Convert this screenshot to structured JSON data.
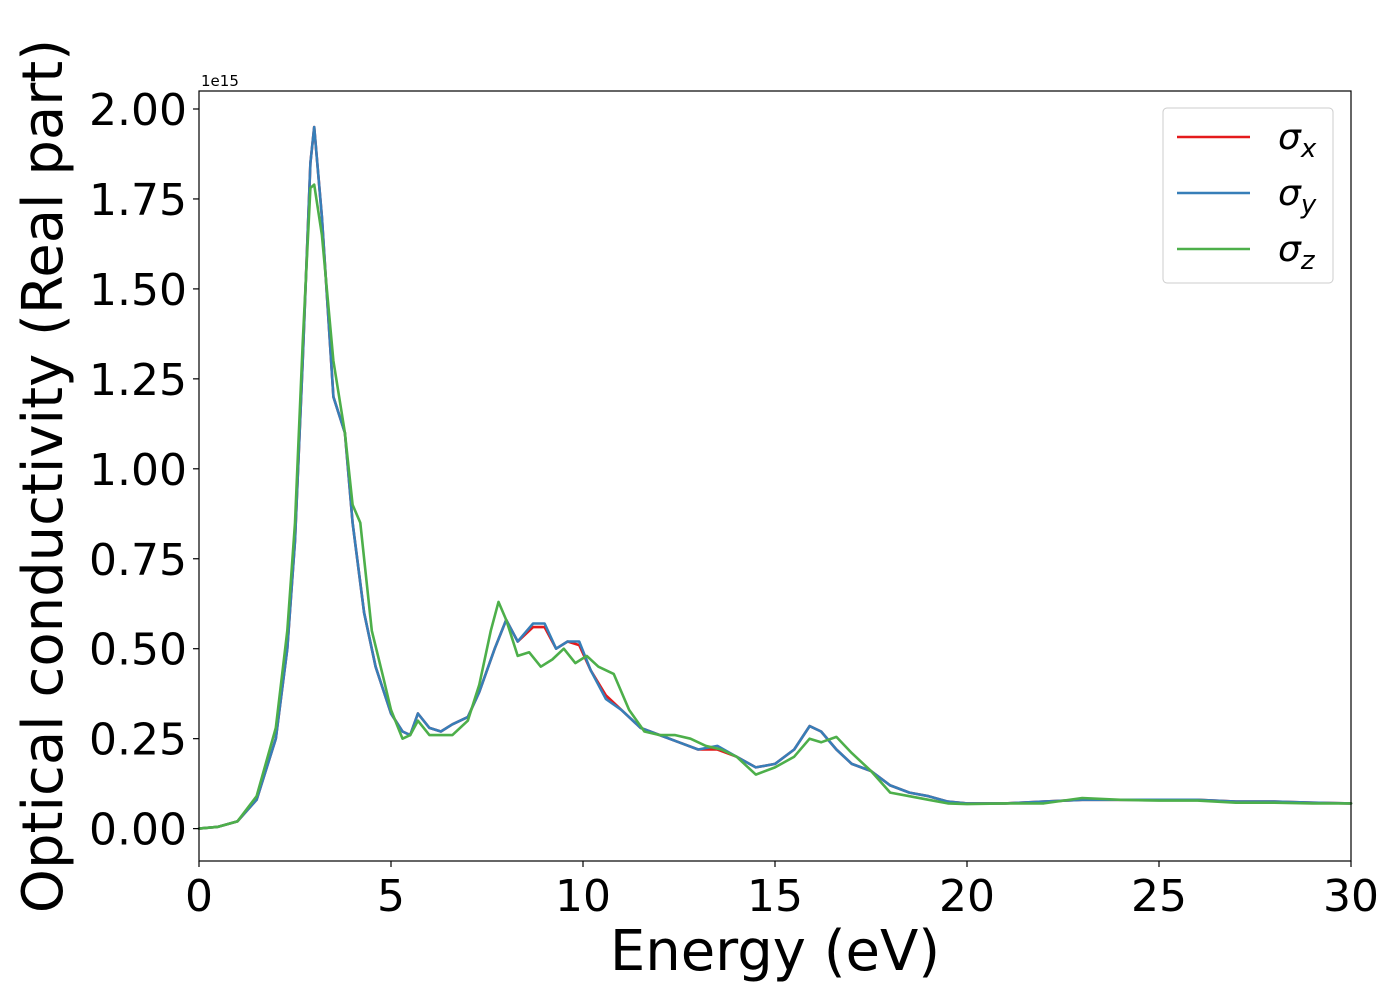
{
  "chart_data": {
    "type": "line",
    "xlabel": "Energy (eV)",
    "ylabel": "Optical conductivity (Real part)",
    "offset_label": "1e15",
    "xlim": [
      0,
      30
    ],
    "ylim": [
      -0.09,
      2.05
    ],
    "xticks": [
      0,
      5,
      10,
      15,
      20,
      25,
      30
    ],
    "xtick_labels": [
      "0",
      "5",
      "10",
      "15",
      "20",
      "25",
      "30"
    ],
    "yticks": [
      0.0,
      0.25,
      0.5,
      0.75,
      1.0,
      1.25,
      1.5,
      1.75,
      2.0
    ],
    "ytick_labels": [
      "0.00",
      "0.25",
      "0.50",
      "0.75",
      "1.00",
      "1.25",
      "1.50",
      "1.75",
      "2.00"
    ],
    "grid": false,
    "legend_position": "top-right",
    "series": [
      {
        "name": "σx",
        "base": "σ",
        "sub": "x",
        "color": "#e41a1c",
        "points": [
          [
            0,
            0
          ],
          [
            0.5,
            0.005
          ],
          [
            1,
            0.02
          ],
          [
            1.5,
            0.08
          ],
          [
            2,
            0.25
          ],
          [
            2.3,
            0.5
          ],
          [
            2.5,
            0.8
          ],
          [
            2.7,
            1.3
          ],
          [
            2.9,
            1.85
          ],
          [
            3.0,
            1.95
          ],
          [
            3.2,
            1.7
          ],
          [
            3.5,
            1.2
          ],
          [
            3.8,
            1.1
          ],
          [
            4.0,
            0.85
          ],
          [
            4.3,
            0.6
          ],
          [
            4.6,
            0.45
          ],
          [
            5.0,
            0.32
          ],
          [
            5.3,
            0.27
          ],
          [
            5.5,
            0.26
          ],
          [
            5.7,
            0.32
          ],
          [
            6.0,
            0.28
          ],
          [
            6.3,
            0.27
          ],
          [
            6.6,
            0.29
          ],
          [
            7.0,
            0.31
          ],
          [
            7.3,
            0.38
          ],
          [
            7.7,
            0.5
          ],
          [
            8.0,
            0.58
          ],
          [
            8.3,
            0.52
          ],
          [
            8.7,
            0.56
          ],
          [
            9.0,
            0.56
          ],
          [
            9.3,
            0.5
          ],
          [
            9.6,
            0.52
          ],
          [
            9.9,
            0.51
          ],
          [
            10.2,
            0.44
          ],
          [
            10.6,
            0.37
          ],
          [
            11.0,
            0.33
          ],
          [
            11.5,
            0.28
          ],
          [
            12.0,
            0.26
          ],
          [
            12.5,
            0.24
          ],
          [
            13.0,
            0.22
          ],
          [
            13.5,
            0.22
          ],
          [
            14.0,
            0.2
          ],
          [
            14.5,
            0.17
          ],
          [
            15.0,
            0.18
          ],
          [
            15.5,
            0.22
          ],
          [
            15.9,
            0.285
          ],
          [
            16.2,
            0.27
          ],
          [
            16.6,
            0.22
          ],
          [
            17.0,
            0.18
          ],
          [
            17.5,
            0.16
          ],
          [
            18.0,
            0.12
          ],
          [
            18.5,
            0.1
          ],
          [
            19.0,
            0.09
          ],
          [
            19.5,
            0.075
          ],
          [
            20,
            0.07
          ],
          [
            21,
            0.07
          ],
          [
            22,
            0.075
          ],
          [
            23,
            0.08
          ],
          [
            24,
            0.08
          ],
          [
            25,
            0.08
          ],
          [
            26,
            0.08
          ],
          [
            27,
            0.075
          ],
          [
            28,
            0.075
          ],
          [
            29,
            0.072
          ],
          [
            30,
            0.07
          ]
        ]
      },
      {
        "name": "σy",
        "base": "σ",
        "sub": "y",
        "color": "#377eb8",
        "points": [
          [
            0,
            0
          ],
          [
            0.5,
            0.005
          ],
          [
            1,
            0.02
          ],
          [
            1.5,
            0.08
          ],
          [
            2,
            0.25
          ],
          [
            2.3,
            0.5
          ],
          [
            2.5,
            0.8
          ],
          [
            2.7,
            1.3
          ],
          [
            2.9,
            1.85
          ],
          [
            3.0,
            1.95
          ],
          [
            3.2,
            1.7
          ],
          [
            3.5,
            1.2
          ],
          [
            3.8,
            1.1
          ],
          [
            4.0,
            0.85
          ],
          [
            4.3,
            0.6
          ],
          [
            4.6,
            0.45
          ],
          [
            5.0,
            0.32
          ],
          [
            5.3,
            0.27
          ],
          [
            5.5,
            0.26
          ],
          [
            5.7,
            0.32
          ],
          [
            6.0,
            0.28
          ],
          [
            6.3,
            0.27
          ],
          [
            6.6,
            0.29
          ],
          [
            7.0,
            0.31
          ],
          [
            7.3,
            0.38
          ],
          [
            7.7,
            0.5
          ],
          [
            8.0,
            0.58
          ],
          [
            8.3,
            0.52
          ],
          [
            8.7,
            0.57
          ],
          [
            9.0,
            0.57
          ],
          [
            9.3,
            0.5
          ],
          [
            9.6,
            0.52
          ],
          [
            9.9,
            0.52
          ],
          [
            10.2,
            0.44
          ],
          [
            10.6,
            0.36
          ],
          [
            11.0,
            0.33
          ],
          [
            11.5,
            0.28
          ],
          [
            12.0,
            0.26
          ],
          [
            12.5,
            0.24
          ],
          [
            13.0,
            0.22
          ],
          [
            13.5,
            0.23
          ],
          [
            14.0,
            0.2
          ],
          [
            14.5,
            0.17
          ],
          [
            15.0,
            0.18
          ],
          [
            15.5,
            0.22
          ],
          [
            15.9,
            0.285
          ],
          [
            16.2,
            0.27
          ],
          [
            16.6,
            0.22
          ],
          [
            17.0,
            0.18
          ],
          [
            17.5,
            0.16
          ],
          [
            18.0,
            0.12
          ],
          [
            18.5,
            0.1
          ],
          [
            19.0,
            0.09
          ],
          [
            19.5,
            0.075
          ],
          [
            20,
            0.07
          ],
          [
            21,
            0.07
          ],
          [
            22,
            0.075
          ],
          [
            23,
            0.08
          ],
          [
            24,
            0.08
          ],
          [
            25,
            0.08
          ],
          [
            26,
            0.08
          ],
          [
            27,
            0.075
          ],
          [
            28,
            0.075
          ],
          [
            29,
            0.072
          ],
          [
            30,
            0.07
          ]
        ]
      },
      {
        "name": "σz",
        "base": "σ",
        "sub": "z",
        "color": "#4daf4a",
        "points": [
          [
            0,
            0
          ],
          [
            0.5,
            0.005
          ],
          [
            1,
            0.02
          ],
          [
            1.5,
            0.09
          ],
          [
            2,
            0.28
          ],
          [
            2.3,
            0.55
          ],
          [
            2.5,
            0.85
          ],
          [
            2.7,
            1.35
          ],
          [
            2.9,
            1.78
          ],
          [
            3.0,
            1.79
          ],
          [
            3.2,
            1.65
          ],
          [
            3.5,
            1.3
          ],
          [
            3.8,
            1.1
          ],
          [
            4.0,
            0.9
          ],
          [
            4.2,
            0.85
          ],
          [
            4.5,
            0.55
          ],
          [
            4.8,
            0.42
          ],
          [
            5.0,
            0.33
          ],
          [
            5.3,
            0.25
          ],
          [
            5.5,
            0.26
          ],
          [
            5.7,
            0.3
          ],
          [
            6.0,
            0.26
          ],
          [
            6.3,
            0.26
          ],
          [
            6.6,
            0.26
          ],
          [
            7.0,
            0.3
          ],
          [
            7.3,
            0.4
          ],
          [
            7.6,
            0.55
          ],
          [
            7.8,
            0.63
          ],
          [
            8.0,
            0.58
          ],
          [
            8.3,
            0.48
          ],
          [
            8.6,
            0.49
          ],
          [
            8.9,
            0.45
          ],
          [
            9.2,
            0.47
          ],
          [
            9.5,
            0.5
          ],
          [
            9.8,
            0.46
          ],
          [
            10.1,
            0.48
          ],
          [
            10.4,
            0.45
          ],
          [
            10.8,
            0.43
          ],
          [
            11.2,
            0.33
          ],
          [
            11.6,
            0.27
          ],
          [
            12.0,
            0.26
          ],
          [
            12.4,
            0.26
          ],
          [
            12.8,
            0.25
          ],
          [
            13.2,
            0.23
          ],
          [
            13.6,
            0.22
          ],
          [
            14.0,
            0.2
          ],
          [
            14.5,
            0.15
          ],
          [
            15.0,
            0.17
          ],
          [
            15.5,
            0.2
          ],
          [
            15.9,
            0.25
          ],
          [
            16.2,
            0.24
          ],
          [
            16.6,
            0.255
          ],
          [
            17.0,
            0.21
          ],
          [
            17.5,
            0.16
          ],
          [
            18.0,
            0.1
          ],
          [
            18.5,
            0.09
          ],
          [
            19.0,
            0.08
          ],
          [
            19.5,
            0.07
          ],
          [
            20,
            0.068
          ],
          [
            21,
            0.07
          ],
          [
            22,
            0.07
          ],
          [
            23,
            0.085
          ],
          [
            24,
            0.08
          ],
          [
            25,
            0.078
          ],
          [
            26,
            0.078
          ],
          [
            27,
            0.072
          ],
          [
            28,
            0.072
          ],
          [
            29,
            0.07
          ],
          [
            30,
            0.07
          ]
        ]
      }
    ]
  }
}
